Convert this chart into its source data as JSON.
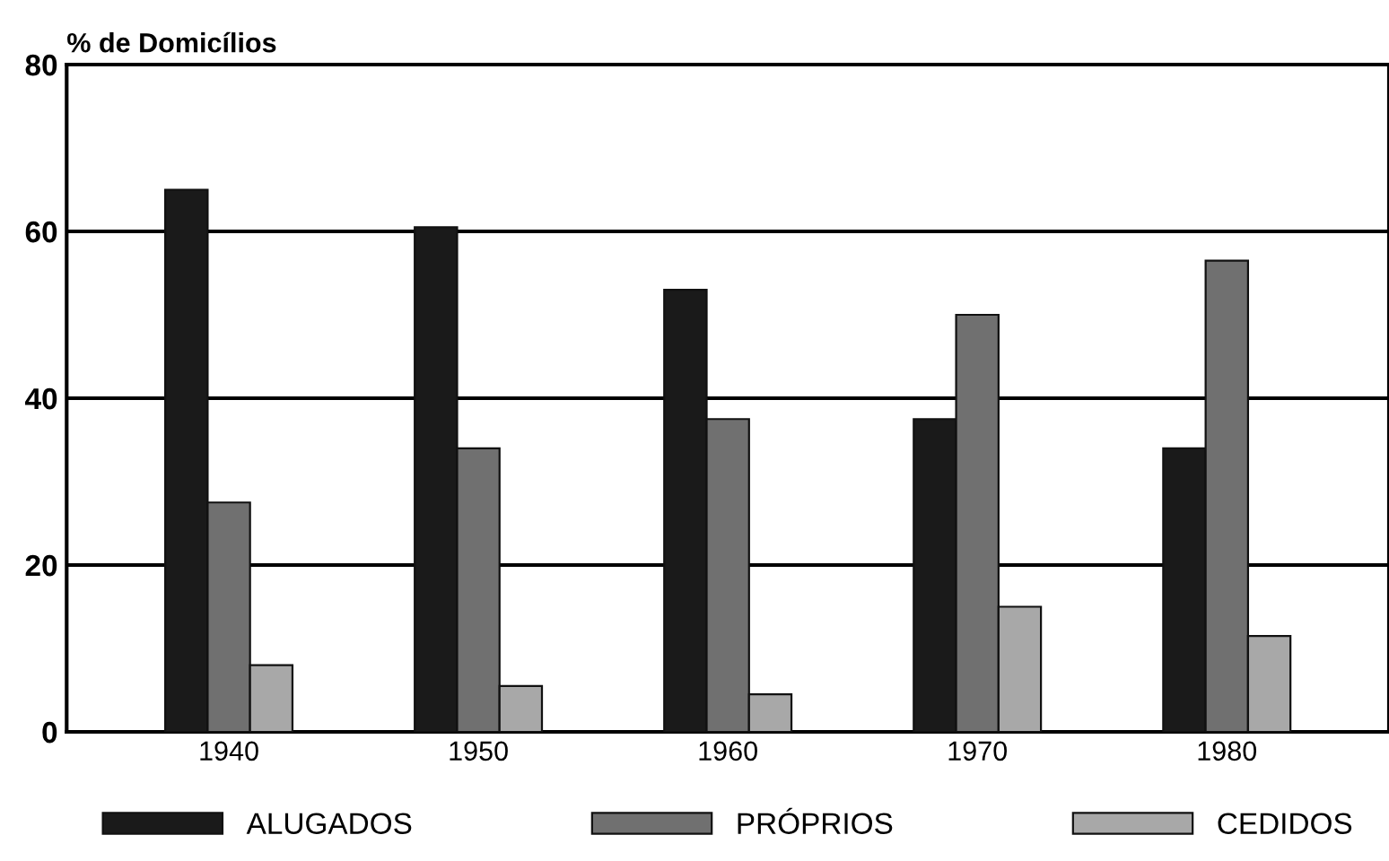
{
  "chart_data": {
    "type": "bar",
    "ylabel": "% de Domicílios",
    "categories": [
      "1940",
      "1950",
      "1960",
      "1970",
      "1980"
    ],
    "series": [
      {
        "name": "ALUGADOS",
        "color": "#1a1a1a",
        "values": [
          65,
          60.5,
          53,
          37.5,
          34
        ]
      },
      {
        "name": "PRÓPRIOS",
        "color": "#707070",
        "values": [
          27.5,
          34,
          37.5,
          50,
          56.5
        ]
      },
      {
        "name": "CEDIDOS",
        "color": "#a8a8a8",
        "values": [
          8,
          5.5,
          4.5,
          15,
          11.5
        ]
      }
    ],
    "ylim": [
      0,
      80
    ],
    "yticks": [
      0,
      20,
      40,
      60,
      80
    ],
    "grid": "y",
    "legend": "bottom"
  }
}
